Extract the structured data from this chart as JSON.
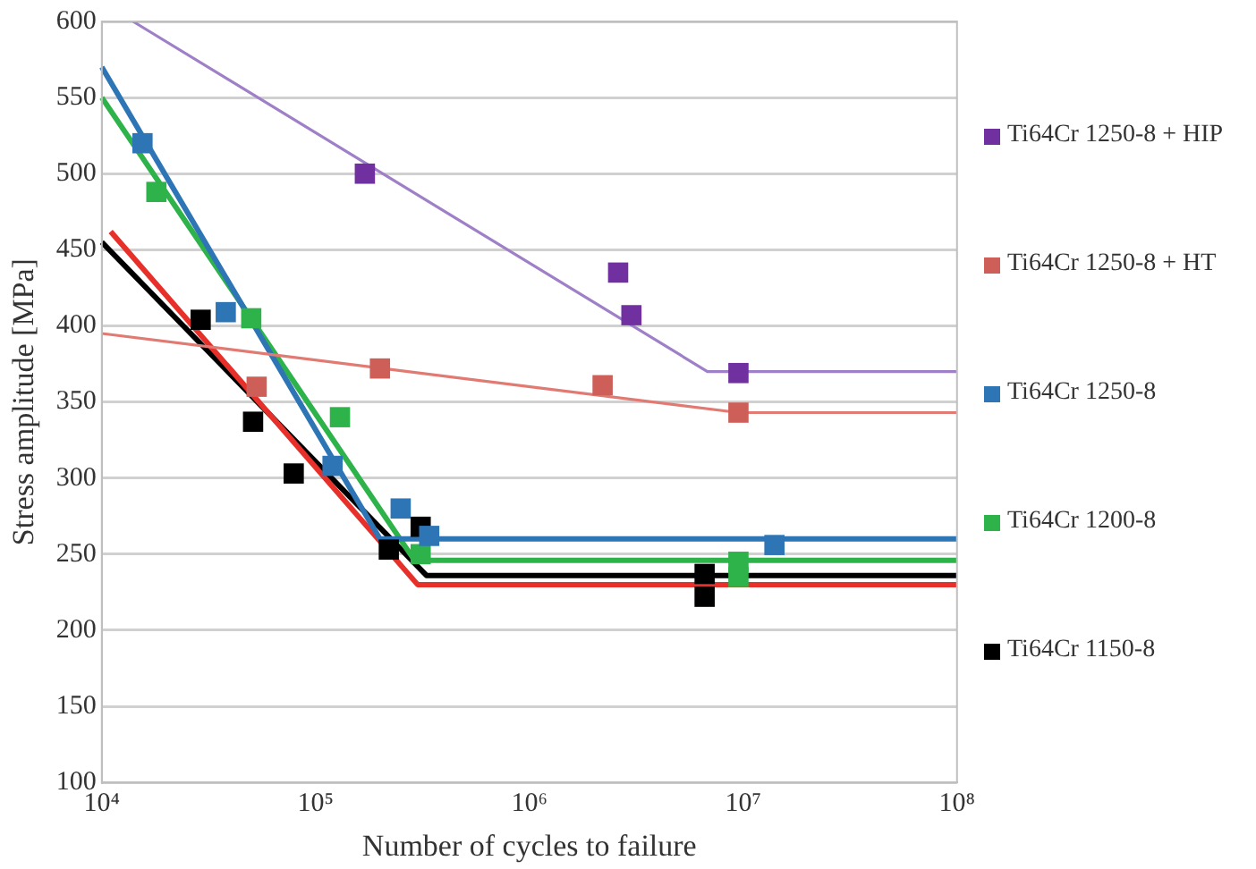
{
  "chart_data": {
    "type": "scatter",
    "xlabel": "Number of cycles to failure",
    "ylabel": "Stress amplitude [MPa]",
    "log": "x",
    "grid": "y",
    "legend": "right",
    "marker": "square",
    "xlim": [
      10000,
      100000000
    ],
    "xticks": [
      {
        "value": 10000,
        "label": "10⁴"
      },
      {
        "value": 100000,
        "label": "10⁵"
      },
      {
        "value": 1000000,
        "label": "10⁶"
      },
      {
        "value": 10000000,
        "label": "10⁷"
      },
      {
        "value": 100000000,
        "label": "10⁸"
      }
    ],
    "ylim": [
      100,
      600
    ],
    "yticks": [
      100,
      150,
      200,
      250,
      300,
      350,
      400,
      450,
      500,
      550,
      600
    ],
    "series": [
      {
        "name": "Ti64Cr 1250-8 + HIP",
        "color": "#7030a0",
        "x": [
          170000,
          2600000,
          3000000,
          9500000
        ],
        "values": [
          500,
          435,
          407,
          369
        ]
      },
      {
        "name": "Ti64Cr 1250-8 + HT",
        "color": "#cd5f58",
        "x": [
          53000,
          200000,
          2200000,
          9500000
        ],
        "values": [
          360,
          372,
          361,
          343
        ]
      },
      {
        "name": "Ti64Cr 1250-8",
        "color": "#2e75b6",
        "x": [
          15500,
          38000,
          120000,
          250000,
          340000,
          14000000
        ],
        "values": [
          520,
          409,
          308,
          280,
          262,
          256
        ]
      },
      {
        "name": "Ti64Cr 1200-8",
        "color": "#2db34a",
        "x": [
          18000,
          50000,
          130000,
          310000,
          9500000,
          9500000
        ],
        "values": [
          488,
          405,
          340,
          250,
          245,
          235
        ]
      },
      {
        "name": "Ti64Cr 1150-8",
        "color": "#000000",
        "x": [
          29000,
          51000,
          79000,
          220000,
          310000,
          6600000,
          6600000
        ],
        "values": [
          404,
          337,
          303,
          253,
          268,
          237,
          222
        ]
      },
      {
        "type": "line",
        "marker": "none",
        "color": "#9e7fc8",
        "x": [
          14000,
          6800000,
          100000000
        ],
        "values": [
          600,
          370,
          370
        ]
      },
      {
        "type": "line",
        "marker": "none",
        "color": "#e07a72",
        "x": [
          10000,
          9500000,
          100000000
        ],
        "values": [
          395,
          343,
          343
        ]
      },
      {
        "type": "line",
        "marker": "none",
        "color": "#2e75b6",
        "x": [
          10000,
          200000,
          100000000
        ],
        "values": [
          570,
          260,
          260
        ]
      },
      {
        "type": "line",
        "marker": "none",
        "color": "#2db34a",
        "x": [
          10000,
          290000,
          100000000
        ],
        "values": [
          550,
          246,
          246
        ]
      },
      {
        "type": "line",
        "marker": "none",
        "color": "#e8302a",
        "x": [
          11000,
          300000,
          100000000
        ],
        "values": [
          462,
          230,
          230
        ]
      },
      {
        "type": "line",
        "marker": "none",
        "color": "#000000",
        "x": [
          10000,
          330000,
          100000000
        ],
        "values": [
          455,
          236,
          236
        ]
      }
    ]
  }
}
